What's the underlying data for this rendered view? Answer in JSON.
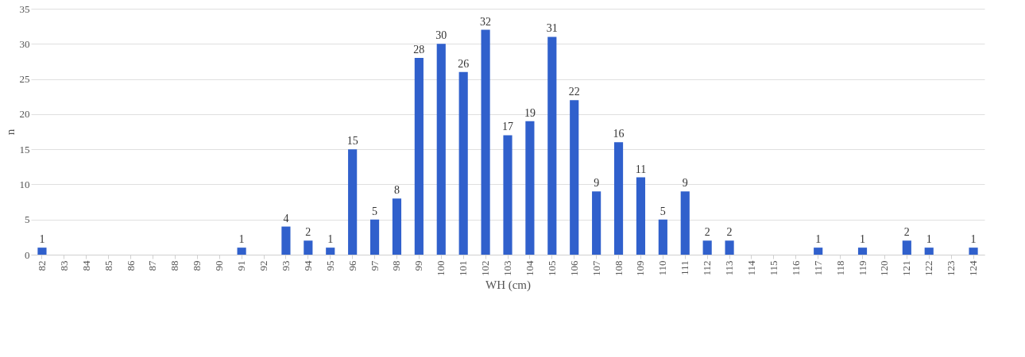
{
  "chart_data": {
    "type": "bar",
    "xlabel": "WH (cm)",
    "ylabel": "n",
    "categories": [
      "82",
      "83",
      "84",
      "85",
      "86",
      "87",
      "88",
      "89",
      "90",
      "91",
      "92",
      "93",
      "94",
      "95",
      "96",
      "97",
      "98",
      "99",
      "100",
      "101",
      "102",
      "103",
      "104",
      "105",
      "106",
      "107",
      "108",
      "109",
      "110",
      "111",
      "112",
      "113",
      "114",
      "115",
      "116",
      "117",
      "118",
      "119",
      "120",
      "121",
      "122",
      "123",
      "124"
    ],
    "values": [
      1,
      0,
      0,
      0,
      0,
      0,
      0,
      0,
      0,
      1,
      0,
      4,
      2,
      1,
      15,
      5,
      8,
      28,
      30,
      26,
      32,
      17,
      19,
      31,
      22,
      9,
      16,
      11,
      5,
      9,
      2,
      2,
      0,
      0,
      0,
      1,
      0,
      1,
      0,
      2,
      1,
      0,
      1
    ],
    "value_labels": [
      "1",
      null,
      null,
      null,
      null,
      null,
      null,
      null,
      null,
      "1",
      null,
      "4",
      "2",
      "1",
      "15",
      "5",
      "8",
      "28",
      "30",
      "26",
      "32",
      "17",
      "19",
      "31",
      "22",
      "9",
      "16",
      "11",
      "5",
      "9",
      "2",
      "2",
      null,
      null,
      null,
      "1",
      null,
      "1",
      null,
      "2",
      "1",
      null,
      "1"
    ],
    "color": "#3060cc",
    "ylim": [
      0,
      35
    ],
    "yticks": [
      0,
      5,
      10,
      15,
      20,
      25,
      30,
      35
    ],
    "grid": "y"
  }
}
